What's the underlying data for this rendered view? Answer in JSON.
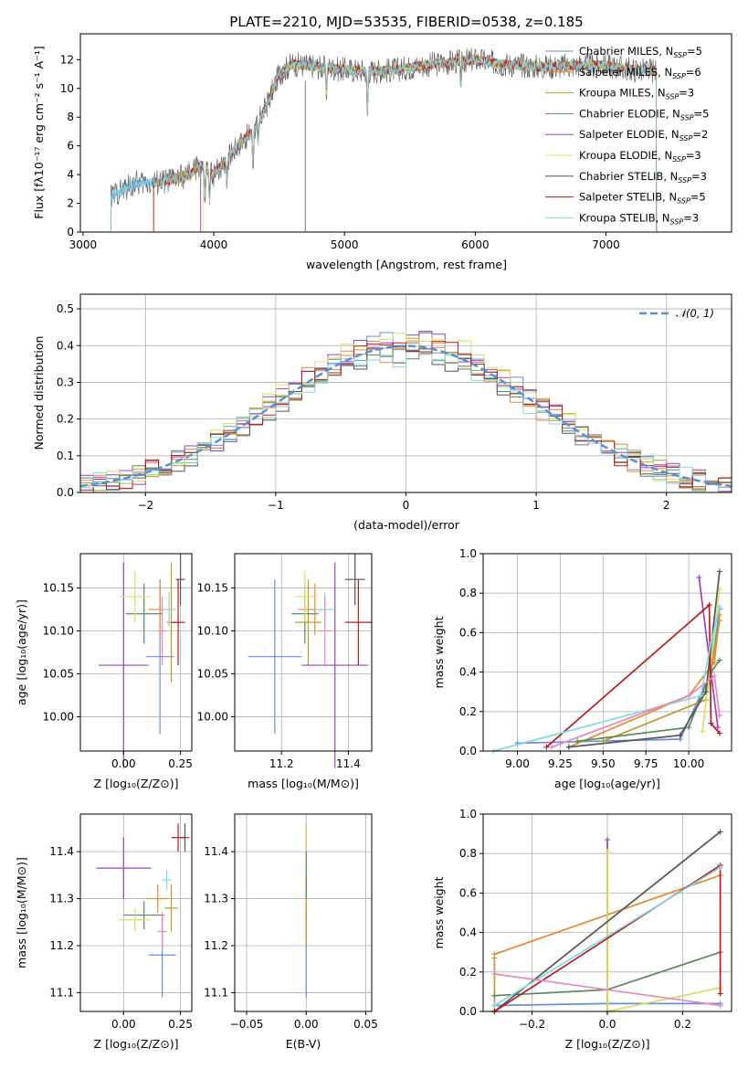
{
  "colors": [
    "#6a8fdc",
    "#e88a2e",
    "#c09a2e",
    "#5a8a5e",
    "#a040c0",
    "#d8e060",
    "#555555",
    "#b81c1c",
    "#80d8e0",
    "#e888b8"
  ],
  "chart_data": [
    {
      "id": "spectrum",
      "type": "line",
      "title": "PLATE=2210, MJD=53535, FIBERID=0538, z=0.185",
      "xlabel": "wavelength [Angstrom, rest frame]",
      "ylabel": "Flux [fλ10⁻¹⁷ erg cm⁻² s⁻¹ A⁻¹]",
      "xlim": [
        2980,
        7960
      ],
      "ylim": [
        0,
        13.8
      ],
      "xticks": [
        3000,
        4000,
        5000,
        6000,
        7000
      ],
      "yticks": [
        0,
        2,
        4,
        6,
        8,
        10,
        12
      ],
      "grid": false,
      "legend_position": "right",
      "data_range": [
        3215,
        7385
      ],
      "continuum": {
        "x": [
          3215,
          3400,
          3600,
          3800,
          3900,
          4000,
          4200,
          4300,
          4400,
          4500,
          4600,
          4800,
          5000,
          5200,
          5400,
          5600,
          5800,
          6000,
          6200,
          6500,
          6800,
          7000,
          7200,
          7385
        ],
        "y": [
          2.5,
          3.4,
          3.5,
          3.9,
          4.7,
          4.0,
          6.2,
          7.0,
          8.7,
          11.0,
          11.7,
          11.5,
          11.3,
          11.2,
          11.3,
          11.6,
          11.8,
          12.0,
          11.7,
          11.5,
          11.6,
          11.6,
          11.3,
          11.2
        ]
      },
      "absorption_lines": [
        {
          "x": 3933,
          "depth": 2.2
        },
        {
          "x": 3968,
          "depth": 2.0
        },
        {
          "x": 4101,
          "depth": 1.5
        },
        {
          "x": 4300,
          "depth": 2.5
        },
        {
          "x": 4340,
          "depth": 1.5
        },
        {
          "x": 4861,
          "depth": 1.8
        },
        {
          "x": 5175,
          "depth": 2.8
        },
        {
          "x": 5890,
          "depth": 1.6
        }
      ],
      "series": [
        {
          "name": "Chabrier MILES, N",
          "sub": "SSP",
          "suffix": "=5",
          "start": 3215
        },
        {
          "name": "Salpeter MILES, N",
          "sub": "SSP",
          "suffix": "=6",
          "start": 3540
        },
        {
          "name": "Kroupa MILES, N",
          "sub": "SSP",
          "suffix": "=3",
          "start": 3540
        },
        {
          "name": "Chabrier ELODIE, N",
          "sub": "SSP",
          "suffix": "=5",
          "start": 3900
        },
        {
          "name": "Salpeter ELODIE, N",
          "sub": "SSP",
          "suffix": "=2",
          "start": 3900
        },
        {
          "name": "Kroupa ELODIE, N",
          "sub": "SSP",
          "suffix": "=3",
          "start": 3920
        },
        {
          "name": "Chabrier STELIB, N",
          "sub": "SSP",
          "suffix": "=3",
          "start": 3215
        },
        {
          "name": "Salpeter STELIB, N",
          "sub": "SSP",
          "suffix": "=5",
          "start": 3540
        },
        {
          "name": "Kroupa STELIB, N",
          "sub": "SSP",
          "suffix": "=3",
          "start": 3215
        }
      ]
    },
    {
      "id": "residuals",
      "type": "histogram",
      "xlabel": "(data-model)/error",
      "ylabel": "Normed distribution",
      "xlim": [
        -2.5,
        2.5
      ],
      "ylim": [
        0,
        0.54
      ],
      "xticks": [
        -2,
        -1,
        0,
        1,
        2
      ],
      "yticks": [
        0.0,
        0.1,
        0.2,
        0.3,
        0.4,
        0.5
      ],
      "grid": true,
      "reference_curve": {
        "name": "𝒩(0, 1)",
        "mean": 0,
        "std": 1
      },
      "legend_position": "top-right",
      "bin_width": 0.1,
      "series_offsets": [
        0.012,
        -0.015,
        0.02,
        -0.008,
        0.025,
        0.03,
        -0.02,
        0.005,
        -0.03
      ]
    },
    {
      "id": "age-metallicity",
      "type": "errorbar",
      "xlabel": "Z [log₁₀(Z/Z⊙)]",
      "ylabel": "age  [log₁₀(age/yr)]",
      "xlim": [
        -0.19,
        0.3
      ],
      "ylim": [
        9.96,
        10.19
      ],
      "xticks": [
        0.0,
        0.25
      ],
      "yticks": [
        10.0,
        10.05,
        10.1,
        10.15
      ],
      "grid": true,
      "points": [
        {
          "x": 0.16,
          "y": 10.07,
          "xerr": 0.06,
          "yerr": 0.09
        },
        {
          "x": 0.16,
          "y": 10.125,
          "xerr": 0.05,
          "yerr": 0.03
        },
        {
          "x": 0.21,
          "y": 10.11,
          "xerr": 0.02,
          "yerr": 0.07
        },
        {
          "x": 0.09,
          "y": 10.12,
          "xerr": 0.08,
          "yerr": 0.035
        },
        {
          "x": 0.0,
          "y": 10.06,
          "xerr": 0.11,
          "yerr": 0.12
        },
        {
          "x": 0.05,
          "y": 10.14,
          "xerr": 0.07,
          "yerr": 0.03
        },
        {
          "x": 0.25,
          "y": 10.16,
          "xerr": 0.02,
          "yerr": 0.03
        },
        {
          "x": 0.24,
          "y": 10.11,
          "xerr": 0.03,
          "yerr": 0.05
        },
        {
          "x": 0.2,
          "y": 10.125,
          "xerr": 0.03,
          "yerr": 0.02
        },
        {
          "x": 0.17,
          "y": 10.1,
          "xerr": 0.02,
          "yerr": 0.04
        }
      ]
    },
    {
      "id": "age-mass",
      "type": "errorbar",
      "xlabel": "mass [log₁₀(M/M⊙)]",
      "ylabel": "",
      "xlim": [
        11.06,
        11.47
      ],
      "ylim": [
        9.96,
        10.19
      ],
      "xticks": [
        11.2,
        11.4
      ],
      "yticks": [
        10.0,
        10.05,
        10.1,
        10.15
      ],
      "grid": true,
      "points": [
        {
          "x": 11.18,
          "y": 10.07,
          "xerr": 0.08,
          "yerr": 0.09
        },
        {
          "x": 11.3,
          "y": 10.125,
          "xerr": 0.05,
          "yerr": 0.03
        },
        {
          "x": 11.28,
          "y": 10.11,
          "xerr": 0.04,
          "yerr": 0.05
        },
        {
          "x": 11.27,
          "y": 10.12,
          "xerr": 0.04,
          "yerr": 0.035
        },
        {
          "x": 11.36,
          "y": 10.06,
          "xerr": 0.1,
          "yerr": 0.12
        },
        {
          "x": 11.27,
          "y": 10.14,
          "xerr": 0.03,
          "yerr": 0.03
        },
        {
          "x": 11.42,
          "y": 10.16,
          "xerr": 0.03,
          "yerr": 0.03
        },
        {
          "x": 11.43,
          "y": 10.11,
          "xerr": 0.04,
          "yerr": 0.05
        },
        {
          "x": 11.33,
          "y": 10.125,
          "xerr": 0.03,
          "yerr": 0.02
        },
        {
          "x": 11.33,
          "y": 10.1,
          "xerr": 0.02,
          "yerr": 0.04
        }
      ]
    },
    {
      "id": "weight-age",
      "type": "line",
      "xlabel": "age  [log₁₀(age/yr)]",
      "ylabel": "mass weight",
      "xlim": [
        8.8,
        10.25
      ],
      "ylim": [
        0,
        1
      ],
      "xticks": [
        9.0,
        9.25,
        9.5,
        9.75,
        10.0
      ],
      "yticks": [
        0.0,
        0.2,
        0.4,
        0.6,
        0.8,
        1.0
      ],
      "grid": true,
      "series": [
        {
          "x": [
            9.0,
            9.95,
            10.13,
            10.18
          ],
          "y": [
            0.04,
            0.06,
            0.4,
            0.72
          ]
        },
        {
          "x": [
            9.3,
            10.0,
            10.15,
            10.18
          ],
          "y": [
            0.02,
            0.28,
            0.45,
            0.69
          ]
        },
        {
          "x": [
            9.5,
            10.1,
            10.18
          ],
          "y": [
            0.05,
            0.26,
            0.66
          ]
        },
        {
          "x": [
            9.35,
            10.0,
            10.13,
            10.18
          ],
          "y": [
            0.05,
            0.12,
            0.4,
            0.46
          ]
        },
        {
          "x": [
            10.06,
            10.17
          ],
          "y": [
            0.88,
            0.12
          ]
        },
        {
          "x": [
            10.08,
            10.18
          ],
          "y": [
            0.1,
            0.82
          ]
        },
        {
          "x": [
            9.3,
            9.95,
            10.1,
            10.18
          ],
          "y": [
            0.02,
            0.08,
            0.3,
            0.91
          ]
        },
        {
          "x": [
            9.17,
            10.12,
            10.13,
            10.18
          ],
          "y": [
            0.02,
            0.74,
            0.14,
            0.09
          ]
        },
        {
          "x": [
            8.86,
            10.07,
            10.13,
            10.18
          ],
          "y": [
            0.0,
            0.28,
            0.55,
            0.73
          ]
        },
        {
          "x": [
            9.2,
            10.0,
            10.15,
            10.18
          ],
          "y": [
            0.02,
            0.28,
            0.38,
            0.18
          ]
        }
      ]
    },
    {
      "id": "mass-metallicity",
      "type": "errorbar",
      "xlabel": "Z [log₁₀(Z/Z⊙)]",
      "ylabel": "mass [log₁₀(M/M⊙)]",
      "xlim": [
        -0.19,
        0.3
      ],
      "ylim": [
        11.06,
        11.48
      ],
      "xticks": [
        0.0,
        0.25
      ],
      "yticks": [
        11.1,
        11.2,
        11.3,
        11.4
      ],
      "grid": true,
      "points": [
        {
          "x": 0.17,
          "y": 11.18,
          "xerr": 0.06,
          "yerr": 0.09
        },
        {
          "x": 0.15,
          "y": 11.3,
          "xerr": 0.05,
          "yerr": 0.03
        },
        {
          "x": 0.21,
          "y": 11.28,
          "xerr": 0.03,
          "yerr": 0.05
        },
        {
          "x": 0.09,
          "y": 11.265,
          "xerr": 0.09,
          "yerr": 0.03
        },
        {
          "x": 0.0,
          "y": 11.365,
          "xerr": 0.12,
          "yerr": 0.065
        },
        {
          "x": 0.05,
          "y": 11.255,
          "xerr": 0.07,
          "yerr": 0.025
        },
        {
          "x": 0.27,
          "y": 11.43,
          "xerr": 0.02,
          "yerr": 0.03
        },
        {
          "x": 0.24,
          "y": 11.43,
          "xerr": 0.03,
          "yerr": 0.03
        },
        {
          "x": 0.19,
          "y": 11.34,
          "xerr": 0.02,
          "yerr": 0.02
        },
        {
          "x": 0.17,
          "y": 11.23,
          "xerr": 0.02,
          "yerr": 0.04
        }
      ]
    },
    {
      "id": "mass-extinction",
      "type": "errorbar",
      "xlabel": "E(B-V)",
      "ylabel": "",
      "xlim": [
        -0.06,
        0.055
      ],
      "ylim": [
        11.06,
        11.48
      ],
      "xticks": [
        -0.05,
        0.0,
        0.05
      ],
      "yticks": [
        11.1,
        11.2,
        11.3,
        11.4
      ],
      "grid": true,
      "points": [
        {
          "x": 0.0,
          "y": 11.18,
          "xerr": 0.0,
          "yerr": 0.09
        },
        {
          "x": 0.0,
          "y": 11.3,
          "xerr": 0.0,
          "yerr": 0.05
        },
        {
          "x": 0.0,
          "y": 11.25,
          "xerr": 0.0,
          "yerr": 0.05
        },
        {
          "x": 0.0,
          "y": 11.365,
          "xerr": 0.0,
          "yerr": 0.065
        },
        {
          "x": 0.0,
          "y": 11.43,
          "xerr": 0.0,
          "yerr": 0.03
        },
        {
          "x": 0.0,
          "y": 11.43,
          "xerr": 0.0,
          "yerr": 0.03
        }
      ]
    },
    {
      "id": "weight-metallicity",
      "type": "line",
      "xlabel": "Z [log₁₀(Z/Z⊙)]",
      "ylabel": "mass weight",
      "xlim": [
        -0.33,
        0.33
      ],
      "ylim": [
        0,
        1
      ],
      "xticks": [
        -0.2,
        0.0,
        0.2
      ],
      "yticks": [
        0.0,
        0.2,
        0.4,
        0.6,
        0.8,
        1.0
      ],
      "grid": true,
      "series": [
        {
          "x": [
            -0.3,
            0.0,
            0.3
          ],
          "y": [
            0.03,
            0.04,
            0.04
          ]
        },
        {
          "x": [
            -0.3,
            0.3
          ],
          "y": [
            0.29,
            0.69
          ]
        },
        {
          "x": [
            -0.3,
            -0.3
          ],
          "y": [
            0.0,
            0.27
          ]
        },
        {
          "x": [
            -0.3,
            0.0,
            0.3
          ],
          "y": [
            0.08,
            0.11,
            0.3
          ]
        },
        {
          "x": [
            0.0,
            0.0
          ],
          "y": [
            0.0,
            0.87
          ]
        },
        {
          "x": [
            0.0,
            0.0,
            0.3
          ],
          "y": [
            0.81,
            0.0,
            0.12
          ]
        },
        {
          "x": [
            -0.3,
            0.3
          ],
          "y": [
            0.0,
            0.91
          ]
        },
        {
          "x": [
            -0.3,
            0.3,
            0.3
          ],
          "y": [
            0.0,
            0.74,
            0.09
          ]
        },
        {
          "x": [
            -0.3,
            0.3
          ],
          "y": [
            0.03,
            0.73
          ]
        },
        {
          "x": [
            -0.3,
            0.3
          ],
          "y": [
            0.19,
            0.03
          ]
        }
      ]
    }
  ]
}
